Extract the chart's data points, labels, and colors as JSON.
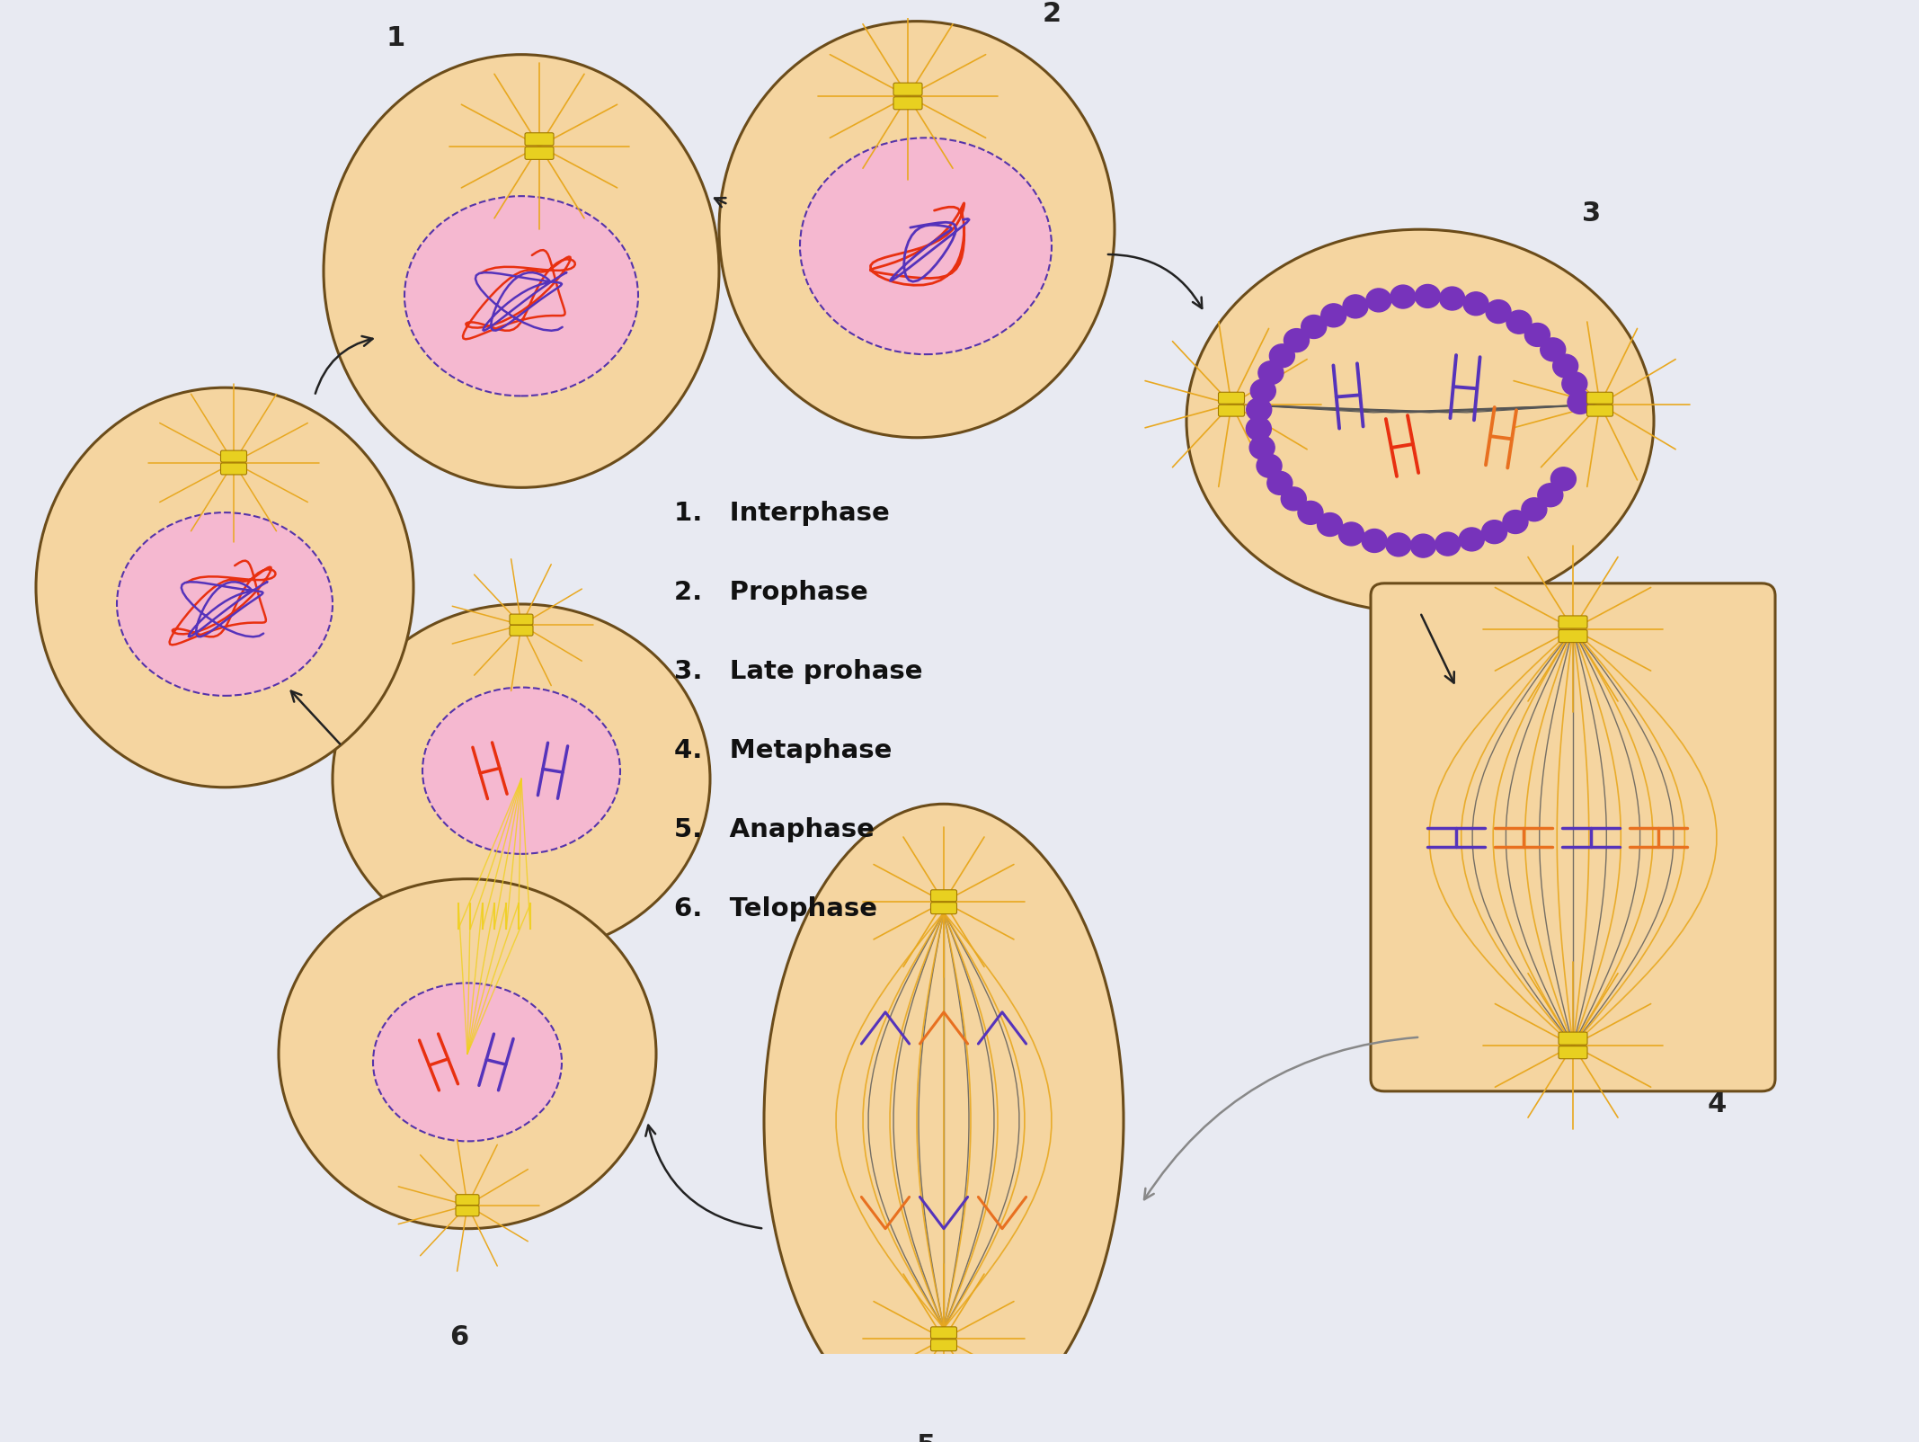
{
  "background_color": "#e8eaf2",
  "cell_fill": "#f5d5a0",
  "cell_edge": "#6b4c1a",
  "cell_lw": 2.2,
  "nucleus_pink_fill": "#f5b8d0",
  "nucleus_dashed_color": "#5533aa",
  "spindle_dark": "#555555",
  "spindle_orange": "#e8a820",
  "chromosome_red": "#e83010",
  "chromosome_blue": "#5533bb",
  "chromosome_orange": "#e87020",
  "aster_color": "#e8a820",
  "centriole_color": "#e8d020",
  "arrow_color": "#222222",
  "arrow_gray": "#888888",
  "text_color": "#111111",
  "label_color": "#222222",
  "legend_labels": [
    "1.   Interphase",
    "2.   Prophase",
    "3.   Late prohase",
    "4.   Metaphase",
    "5.   Anaphase",
    "6.   Telophase"
  ],
  "fig_width": 21.35,
  "fig_height": 16.04
}
